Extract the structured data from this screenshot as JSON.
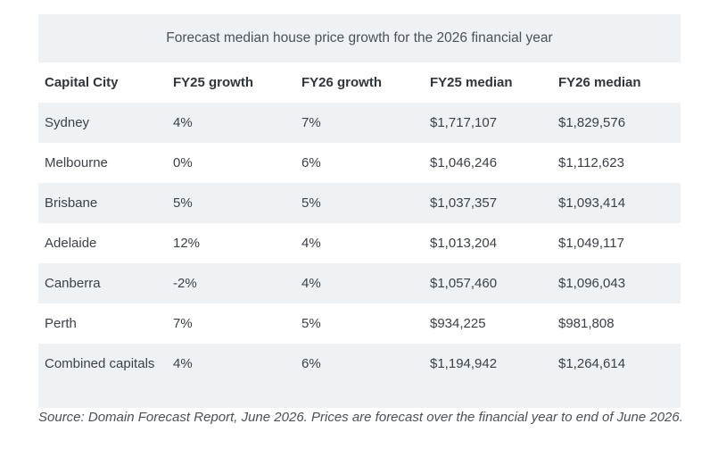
{
  "table": {
    "caption": "Forecast median house price growth for the 2026 financial year",
    "headers": [
      "Capital City",
      "FY25 growth",
      "FY26 growth",
      "FY25 median",
      "FY26 median"
    ],
    "rows": [
      [
        "Sydney",
        "4%",
        "7%",
        "$1,717,107",
        "$1,829,576"
      ],
      [
        "Melbourne",
        "0%",
        "6%",
        "$1,046,246",
        "$1,112,623"
      ],
      [
        "Brisbane",
        "5%",
        "5%",
        "$1,037,357",
        "$1,093,414"
      ],
      [
        "Adelaide",
        "12%",
        "4%",
        "$1,013,204",
        "$1,049,117"
      ],
      [
        "Canberra",
        "-2%",
        "4%",
        "$1,057,460",
        "$1,096,043"
      ],
      [
        "Perth",
        "7%",
        "5%",
        "$934,225",
        "$981,808"
      ],
      [
        "Combined capitals",
        "4%",
        "6%",
        "$1,194,942",
        "$1,264,614"
      ]
    ],
    "colors": {
      "shade": "#eef2f5",
      "text": "#3a4148"
    }
  },
  "source": "Source: Domain Forecast Report, June 2026. Prices are forecast over the financial year to end of June 2026."
}
